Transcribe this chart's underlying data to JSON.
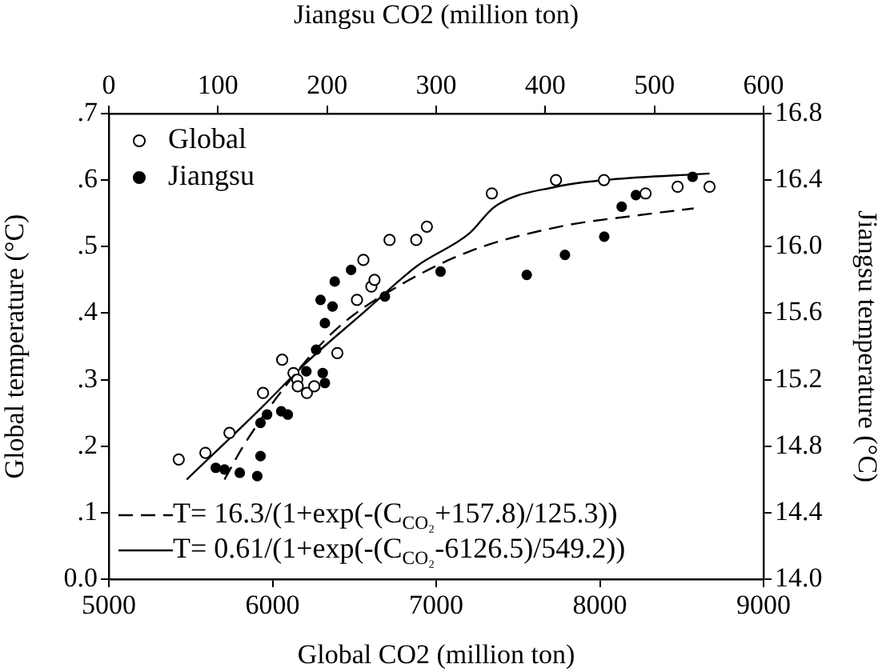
{
  "chart_data": [
    {
      "type": "scatter",
      "xlabel": "Global CO2 (million ton)",
      "ylabel": "Global temperature (°C)",
      "xlim": [
        5000,
        9000
      ],
      "xticks": [
        5000,
        6000,
        7000,
        8000,
        9000
      ],
      "ylim": [
        0,
        0.7
      ],
      "yticks": [
        {
          "value": 0,
          "label": "0.0"
        },
        {
          "value": 0.1,
          "label": ".1"
        },
        {
          "value": 0.2,
          "label": ".2"
        },
        {
          "value": 0.3,
          "label": ".3"
        },
        {
          "value": 0.4,
          "label": ".4"
        },
        {
          "value": 0.5,
          "label": ".5"
        },
        {
          "value": 0.6,
          "label": ".6"
        },
        {
          "value": 0.7,
          "label": ".7"
        }
      ],
      "legend": "top left",
      "grid": false,
      "annotations": [
        "T= 0.61/(1+exp(-(C$_{CO₂}$-6126.5)/549.2))"
      ],
      "series": [
        {
          "name": "Global",
          "marker": "circle",
          "color": "#000000",
          "x": [
            5427,
            5590,
            5737,
            5942,
            6059,
            6128,
            6151,
            6154,
            6210,
            6255,
            6396,
            6516,
            6555,
            6604,
            6623,
            6715,
            6878,
            6943,
            7340,
            7732,
            8025,
            8279,
            8475,
            8670
          ],
          "values": [
            0.18,
            0.19,
            0.22,
            0.28,
            0.33,
            0.31,
            0.3,
            0.29,
            0.28,
            0.29,
            0.34,
            0.42,
            0.48,
            0.44,
            0.45,
            0.51,
            0.51,
            0.53,
            0.58,
            0.6,
            0.6,
            0.58,
            0.59,
            0.59
          ]
        },
        {
          "type": "line",
          "marker": "none",
          "line_style": "solid",
          "color": "#000000",
          "x": [
            5476,
            5900,
            6226,
            6552,
            6878,
            7203,
            7357,
            7732,
            8025,
            8670
          ],
          "values": [
            0.15,
            0.25,
            0.33,
            0.4,
            0.47,
            0.52,
            0.56,
            0.59,
            0.6,
            0.61
          ]
        }
      ]
    },
    {
      "type": "scatter",
      "xlabel": "Jiangsu CO2 (million ton)",
      "ylabel": "Jiangsu temperature (°C)",
      "xlim": [
        0,
        600
      ],
      "xticks": [
        0,
        100,
        200,
        300,
        400,
        500,
        600
      ],
      "ylim": [
        14,
        16.8
      ],
      "yticks": [
        {
          "value": 14,
          "label": "14.0"
        },
        14.4,
        14.8,
        15.2,
        15.6,
        {
          "value": 16,
          "label": "16.0"
        },
        16.4,
        16.8
      ],
      "legend": "top left",
      "grid": false,
      "annotations": [
        "T= 16.3/(1+exp(-(C$_{CO₂}$+157.8)/125.3))"
      ],
      "series": [
        {
          "name": "Jiangsu",
          "marker": "circle",
          "color": "#000000",
          "x": [
            98,
            106,
            120,
            136,
            139,
            139,
            145,
            158,
            164,
            181,
            190,
            196,
            198,
            198,
            194,
            205,
            207,
            222,
            253,
            304,
            383,
            418,
            454,
            470,
            483,
            535
          ],
          "values": [
            14.67,
            14.66,
            14.64,
            14.62,
            14.74,
            14.94,
            14.99,
            15.01,
            14.99,
            15.25,
            15.38,
            15.24,
            15.18,
            15.54,
            15.68,
            15.64,
            15.79,
            15.86,
            15.7,
            15.85,
            15.83,
            15.95,
            16.06,
            16.24,
            16.31,
            16.42
          ]
        },
        {
          "type": "line",
          "marker": "none",
          "line_style": "dashed",
          "color": "#000000",
          "x": [
            106,
            125,
            179,
            213,
            262,
            330,
            413,
            487,
            536
          ],
          "values": [
            14.6,
            14.82,
            15.3,
            15.53,
            15.75,
            15.97,
            16.12,
            16.19,
            16.23
          ]
        }
      ]
    }
  ]
}
